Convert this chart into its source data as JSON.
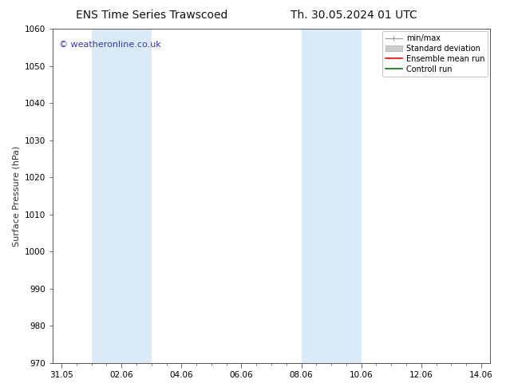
{
  "title_left": "ENS Time Series Trawscoed",
  "title_right": "Th. 30.05.2024 01 UTC",
  "ylabel": "Surface Pressure (hPa)",
  "ylim": [
    970,
    1060
  ],
  "yticks": [
    970,
    980,
    990,
    1000,
    1010,
    1020,
    1030,
    1040,
    1050,
    1060
  ],
  "xlim": [
    -0.3,
    14.3
  ],
  "xtick_labels": [
    "31.05",
    "02.06",
    "04.06",
    "06.06",
    "08.06",
    "10.06",
    "12.06",
    "14.06"
  ],
  "xtick_positions": [
    0,
    2,
    4,
    6,
    8,
    10,
    12,
    14
  ],
  "shaded_regions": [
    {
      "x_start": 1.0,
      "x_end": 3.0
    },
    {
      "x_start": 8.0,
      "x_end": 10.0
    }
  ],
  "shaded_color": "#daeaf7",
  "watermark_text": "© weatheronline.co.uk",
  "watermark_color": "#3333cc",
  "legend_labels": [
    "min/max",
    "Standard deviation",
    "Ensemble mean run",
    "Controll run"
  ],
  "legend_colors": [
    "#999999",
    "#cccccc",
    "#ff0000",
    "#007700"
  ],
  "bg_color": "#ffffff",
  "plot_bg_color": "#ffffff",
  "title_fontsize": 10,
  "ylabel_fontsize": 8,
  "tick_fontsize": 7.5,
  "watermark_fontsize": 8,
  "legend_fontsize": 7
}
